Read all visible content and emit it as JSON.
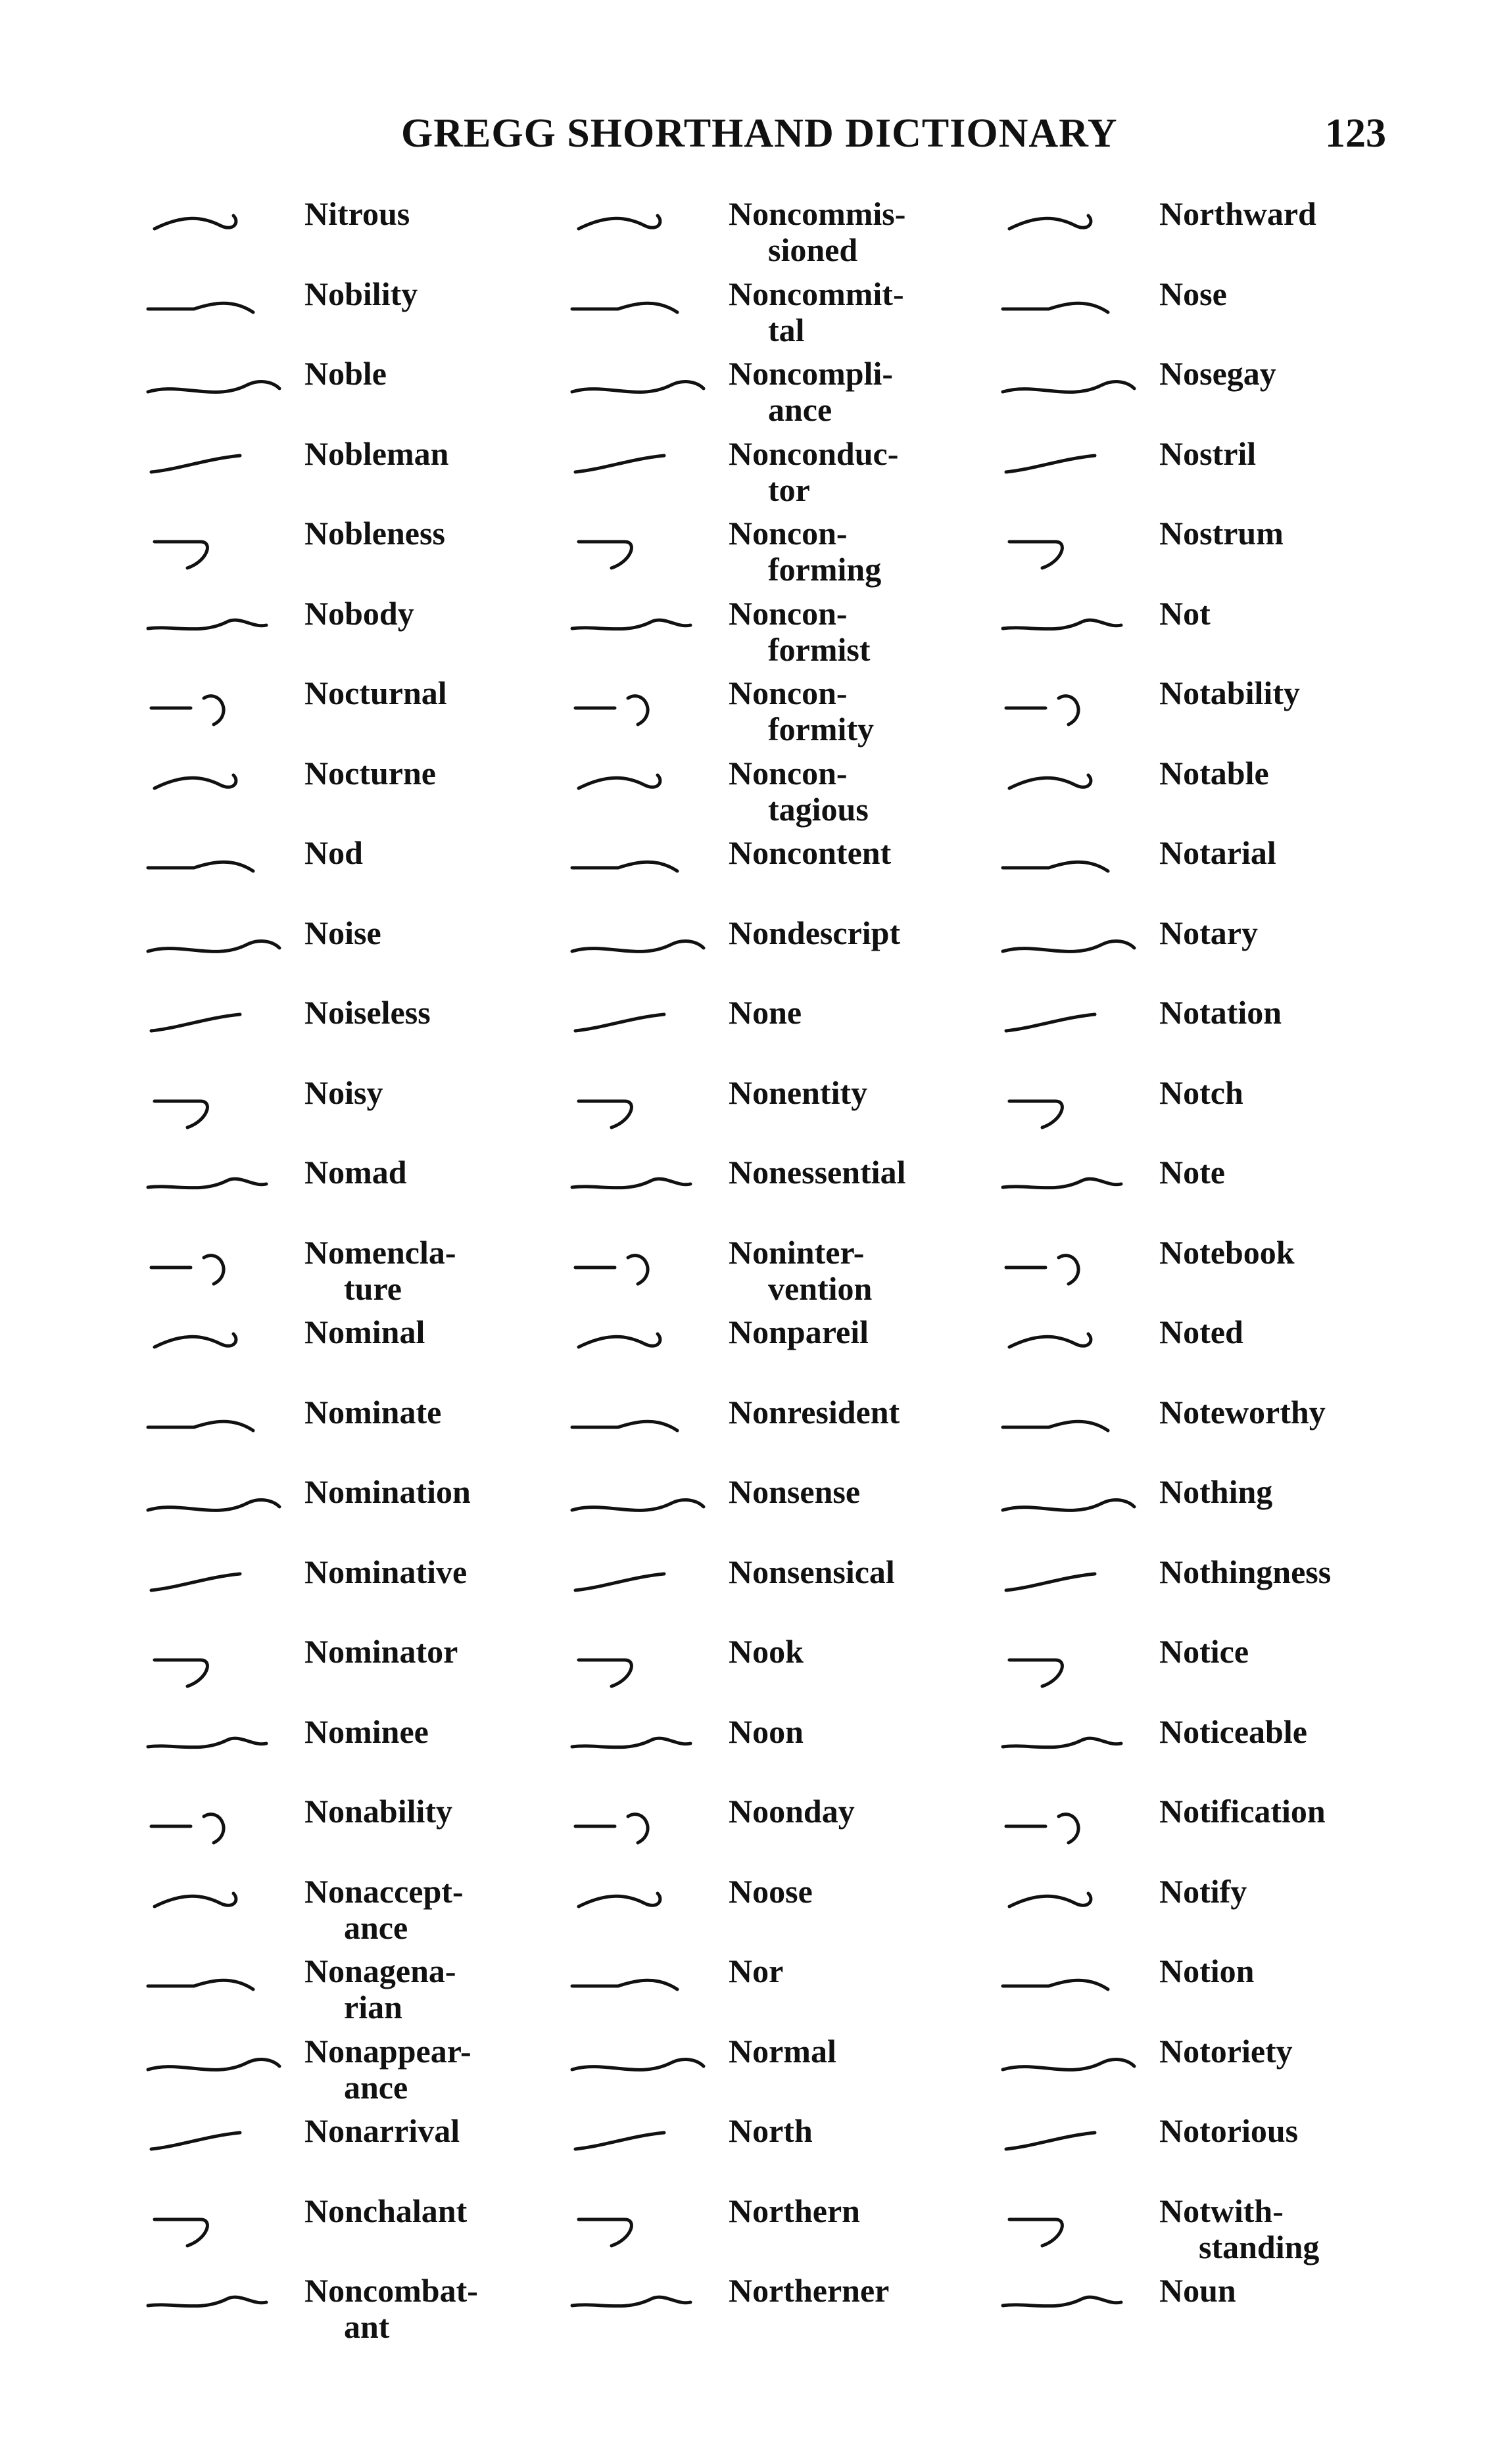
{
  "header": {
    "title": "GREGG SHORTHAND DICTIONARY",
    "page_number": "123"
  },
  "columns": [
    {
      "entries": [
        {
          "word": [
            "Nitrous"
          ]
        },
        {
          "word": [
            "Nobility"
          ]
        },
        {
          "word": [
            "Noble"
          ]
        },
        {
          "word": [
            "Nobleman"
          ]
        },
        {
          "word": [
            "Nobleness"
          ]
        },
        {
          "word": [
            "Nobody"
          ]
        },
        {
          "word": [
            "Nocturnal"
          ]
        },
        {
          "word": [
            "Nocturne"
          ]
        },
        {
          "word": [
            "Nod"
          ]
        },
        {
          "word": [
            "Noise"
          ]
        },
        {
          "word": [
            "Noiseless"
          ]
        },
        {
          "word": [
            "Noisy"
          ]
        },
        {
          "word": [
            "Nomad"
          ]
        },
        {
          "word": [
            "Nomencla-",
            "ture"
          ]
        },
        {
          "word": [
            "Nominal"
          ]
        },
        {
          "word": [
            "Nominate"
          ]
        },
        {
          "word": [
            "Nomination"
          ]
        },
        {
          "word": [
            "Nominative"
          ]
        },
        {
          "word": [
            "Nominator"
          ]
        },
        {
          "word": [
            "Nominee"
          ]
        },
        {
          "word": [
            "Nonability"
          ]
        },
        {
          "word": [
            "Nonaccept-",
            "ance"
          ]
        },
        {
          "word": [
            "Nonagena-",
            "rian"
          ]
        },
        {
          "word": [
            "Nonappear-",
            "ance"
          ]
        },
        {
          "word": [
            "Nonarrival"
          ]
        },
        {
          "word": [
            "Nonchalant"
          ]
        },
        {
          "word": [
            "Noncombat-",
            "ant"
          ]
        }
      ]
    },
    {
      "entries": [
        {
          "word": [
            "Noncommis-",
            "sioned"
          ]
        },
        {
          "word": [
            "Noncommit-",
            "tal"
          ]
        },
        {
          "word": [
            "Noncompli-",
            "ance"
          ]
        },
        {
          "word": [
            "Nonconduc-",
            "tor"
          ]
        },
        {
          "word": [
            "Noncon-",
            "forming"
          ]
        },
        {
          "word": [
            "Noncon-",
            "formist"
          ]
        },
        {
          "word": [
            "Noncon-",
            "formity"
          ]
        },
        {
          "word": [
            "Noncon-",
            "tagious"
          ]
        },
        {
          "word": [
            "Noncontent"
          ]
        },
        {
          "word": [
            "Nondescript"
          ]
        },
        {
          "word": [
            "None"
          ]
        },
        {
          "word": [
            "Nonentity"
          ]
        },
        {
          "word": [
            "Nonessential"
          ]
        },
        {
          "word": [
            "Noninter-",
            "vention"
          ]
        },
        {
          "word": [
            "Nonpareil"
          ]
        },
        {
          "word": [
            "Nonresident"
          ]
        },
        {
          "word": [
            "Nonsense"
          ]
        },
        {
          "word": [
            "Nonsensical"
          ]
        },
        {
          "word": [
            "Nook"
          ]
        },
        {
          "word": [
            "Noon"
          ]
        },
        {
          "word": [
            "Noonday"
          ]
        },
        {
          "word": [
            "Noose"
          ]
        },
        {
          "word": [
            "Nor"
          ]
        },
        {
          "word": [
            "Normal"
          ]
        },
        {
          "word": [
            "North"
          ]
        },
        {
          "word": [
            "Northern"
          ]
        },
        {
          "word": [
            "Northerner"
          ]
        }
      ]
    },
    {
      "entries": [
        {
          "word": [
            "Northward"
          ]
        },
        {
          "word": [
            "Nose"
          ]
        },
        {
          "word": [
            "Nosegay"
          ]
        },
        {
          "word": [
            "Nostril"
          ]
        },
        {
          "word": [
            "Nostrum"
          ]
        },
        {
          "word": [
            "Not"
          ]
        },
        {
          "word": [
            "Notability"
          ]
        },
        {
          "word": [
            "Notable"
          ]
        },
        {
          "word": [
            "Notarial"
          ]
        },
        {
          "word": [
            "Notary"
          ]
        },
        {
          "word": [
            "Notation"
          ]
        },
        {
          "word": [
            "Notch"
          ]
        },
        {
          "word": [
            "Note"
          ]
        },
        {
          "word": [
            "Notebook"
          ]
        },
        {
          "word": [
            "Noted"
          ]
        },
        {
          "word": [
            "Noteworthy"
          ]
        },
        {
          "word": [
            "Nothing"
          ]
        },
        {
          "word": [
            "Nothingness"
          ]
        },
        {
          "word": [
            "Notice"
          ]
        },
        {
          "word": [
            "Noticeable"
          ]
        },
        {
          "word": [
            "Notification"
          ]
        },
        {
          "word": [
            "Notify"
          ]
        },
        {
          "word": [
            "Notion"
          ]
        },
        {
          "word": [
            "Notoriety"
          ]
        },
        {
          "word": [
            "Notorious"
          ]
        },
        {
          "word": [
            "Notwith-",
            "standing"
          ]
        },
        {
          "word": [
            "Noun"
          ]
        }
      ]
    }
  ]
}
